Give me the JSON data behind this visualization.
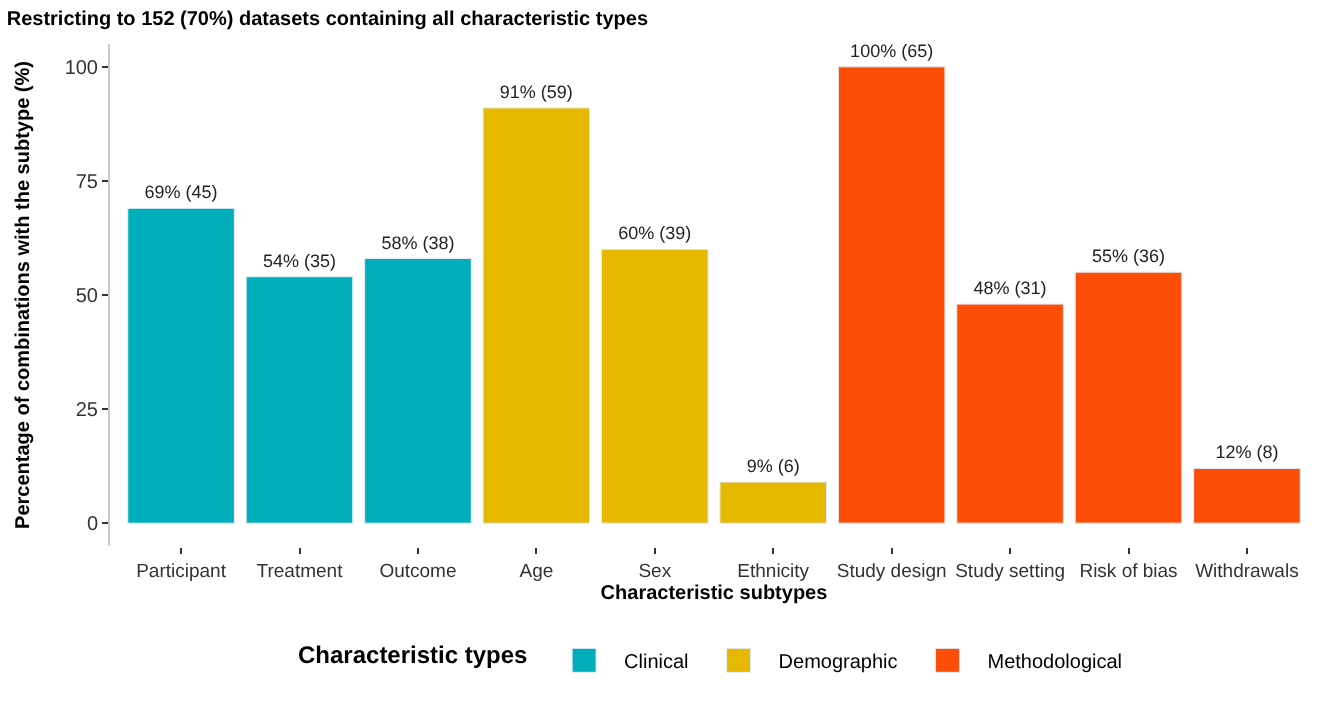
{
  "chart_data": {
    "type": "bar",
    "title": "Restricting to 152 (70%) datasets containing all characteristic types",
    "xlabel": "Characteristic subtypes",
    "ylabel": "Percentage of combinations with the subtype (%)",
    "legend_title": "Characteristic types",
    "categories": [
      "Participant",
      "Treatment",
      "Outcome",
      "Age",
      "Sex",
      "Ethnicity",
      "Study design",
      "Study setting",
      "Risk of bias",
      "Withdrawals"
    ],
    "series": [
      {
        "name": "Clinical",
        "color": "#00afbb",
        "values": [
          69,
          54,
          58,
          null,
          null,
          null,
          null,
          null,
          null,
          null
        ],
        "value_labels": [
          "69% (45)",
          "54% (35)",
          "58% (38)",
          null,
          null,
          null,
          null,
          null,
          null,
          null
        ]
      },
      {
        "name": "Demographic",
        "color": "#e7b800",
        "values": [
          null,
          null,
          null,
          91,
          60,
          9,
          null,
          null,
          null,
          null
        ],
        "value_labels": [
          null,
          null,
          null,
          "91% (59)",
          "60% (39)",
          "9% (6)",
          null,
          null,
          null,
          null
        ]
      },
      {
        "name": "Methodological",
        "color": "#fc4e07",
        "values": [
          null,
          null,
          null,
          null,
          null,
          null,
          100,
          48,
          55,
          12
        ],
        "value_labels": [
          null,
          null,
          null,
          null,
          null,
          null,
          "100% (65)",
          "48% (31)",
          "55% (36)",
          "12% (8)"
        ]
      }
    ],
    "ylim": [
      -5,
      105
    ],
    "yticks": [
      0,
      25,
      50,
      75,
      100
    ],
    "legend": "bottom"
  }
}
